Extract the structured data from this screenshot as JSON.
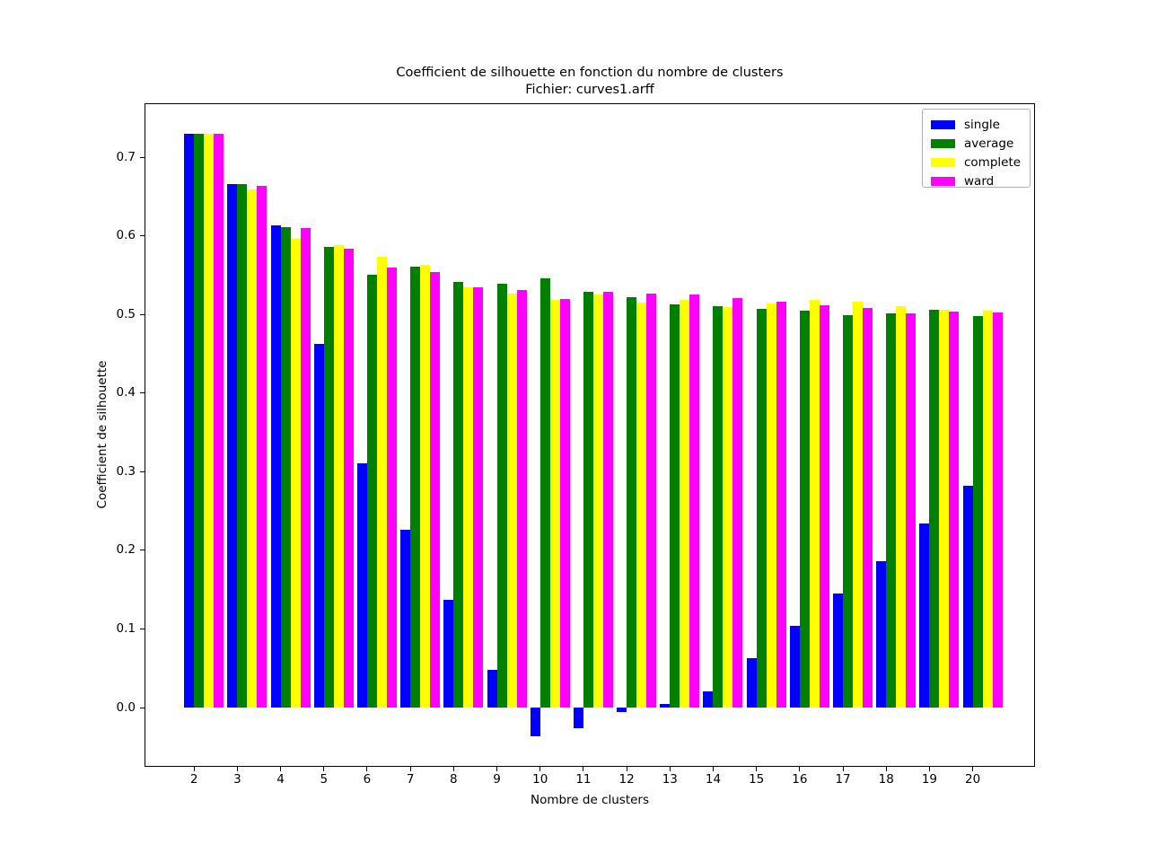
{
  "title": {
    "line1": "Coefficient de silhouette en fonction du nombre de clusters",
    "line2": "Fichier: curves1.arff"
  },
  "chart_data": {
    "type": "bar",
    "title": "Coefficient de silhouette en fonction du nombre de clusters",
    "subtitle": "Fichier: curves1.arff",
    "xlabel": "Nombre de clusters",
    "ylabel": "Coefficient de silhouette",
    "categories": [
      2,
      3,
      4,
      5,
      6,
      7,
      8,
      9,
      10,
      11,
      12,
      13,
      14,
      15,
      16,
      17,
      18,
      19,
      20
    ],
    "series": [
      {
        "name": "single",
        "color": "#0000ff",
        "values": [
          0.73,
          0.666,
          0.613,
          0.462,
          0.311,
          0.226,
          0.137,
          0.048,
          -0.036,
          -0.026,
          -0.006,
          0.005,
          0.021,
          0.063,
          0.104,
          0.145,
          0.186,
          0.234,
          0.282
        ]
      },
      {
        "name": "average",
        "color": "#008000",
        "values": [
          0.73,
          0.666,
          0.611,
          0.586,
          0.55,
          0.561,
          0.541,
          0.539,
          0.546,
          0.529,
          0.522,
          0.513,
          0.511,
          0.507,
          0.505,
          0.499,
          0.501,
          0.506,
          0.498
        ]
      },
      {
        "name": "complete",
        "color": "#ffff00",
        "values": [
          0.73,
          0.659,
          0.596,
          0.588,
          0.573,
          0.563,
          0.534,
          0.526,
          0.518,
          0.525,
          0.515,
          0.519,
          0.509,
          0.514,
          0.519,
          0.516,
          0.51,
          0.506,
          0.505
        ]
      },
      {
        "name": "ward",
        "color": "#ff00ff",
        "values": [
          0.73,
          0.664,
          0.61,
          0.584,
          0.559,
          0.554,
          0.535,
          0.531,
          0.52,
          0.529,
          0.527,
          0.525,
          0.521,
          0.516,
          0.512,
          0.508,
          0.501,
          0.504,
          0.502
        ]
      }
    ],
    "yticks": [
      0.0,
      0.1,
      0.2,
      0.3,
      0.4,
      0.5,
      0.6,
      0.7
    ],
    "ylim": [
      -0.075,
      0.768
    ],
    "grid": false,
    "legend_position": "upper right",
    "background_color": "#ffffff"
  }
}
